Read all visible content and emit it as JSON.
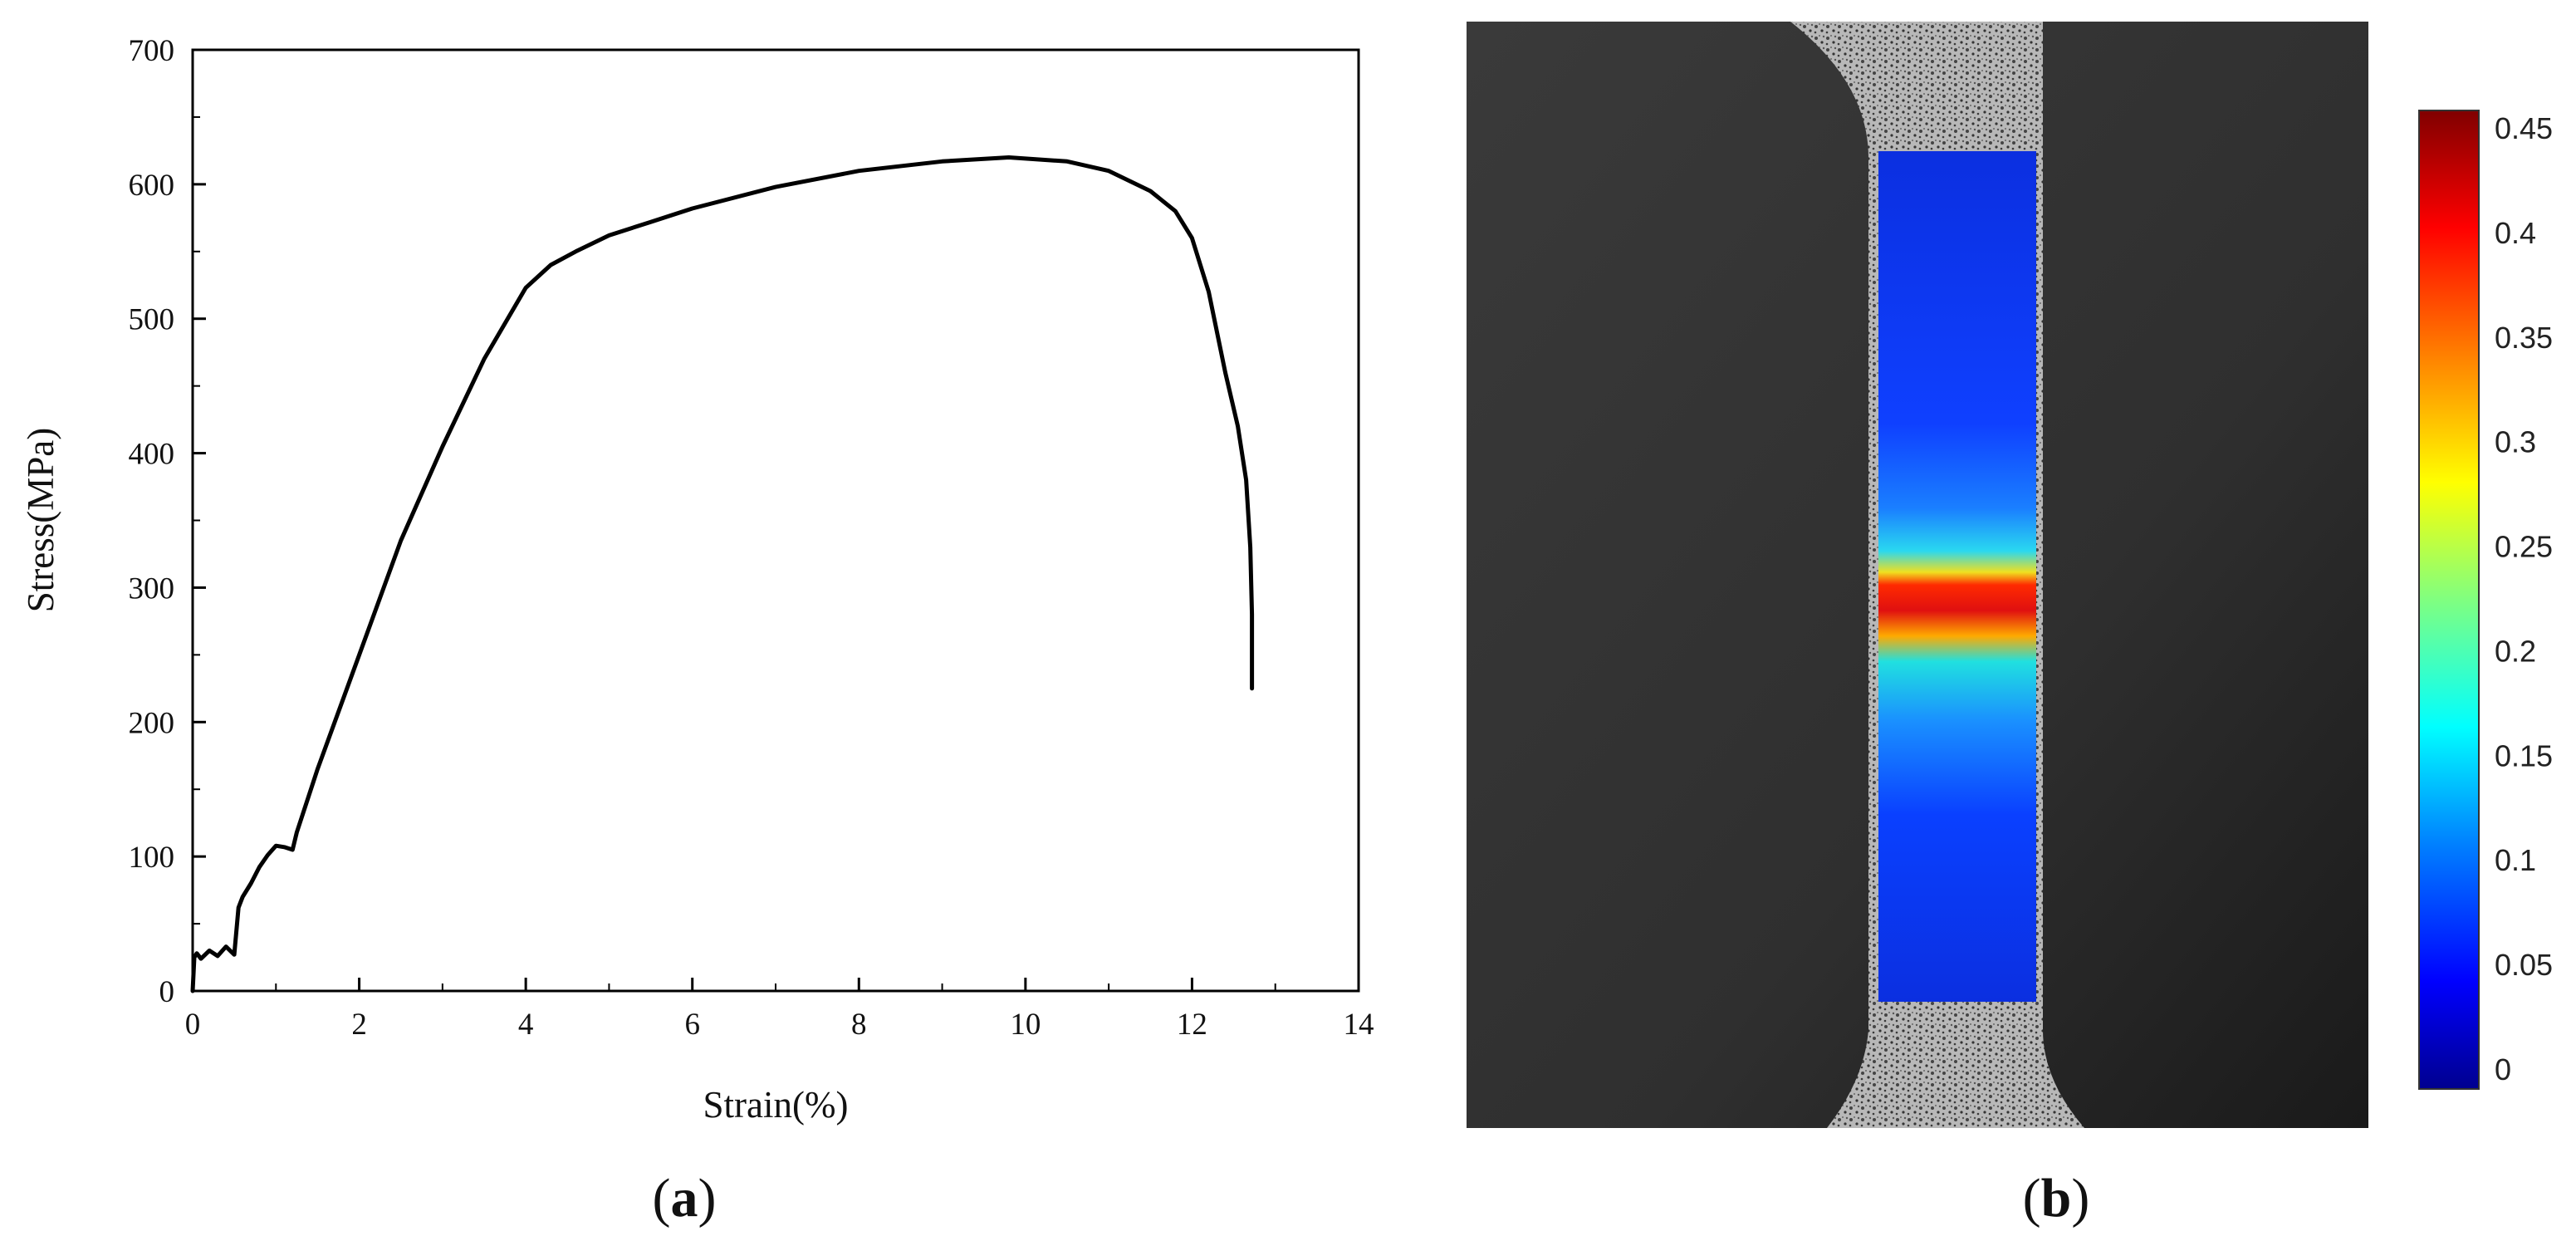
{
  "chart_data": [
    {
      "type": "line",
      "title": "",
      "xlabel": "Strain(%)",
      "ylabel": "Stress(MPa)",
      "xlim": [
        0,
        14
      ],
      "ylim": [
        0,
        700
      ],
      "xticks": [
        0,
        2,
        4,
        6,
        8,
        10,
        12,
        14
      ],
      "yticks": [
        0,
        100,
        200,
        300,
        400,
        500,
        600,
        700
      ],
      "xtick_labels": [
        "0",
        "2",
        "4",
        "6",
        "8",
        "10",
        "12",
        "14"
      ],
      "ytick_labels": [
        "0",
        "100",
        "200",
        "300",
        "400",
        "500",
        "600",
        "700"
      ],
      "grid": false,
      "line_color": "#000000",
      "series": [
        {
          "x": [
            0,
            0.02,
            0.05,
            0.1,
            0.2,
            0.3,
            0.4,
            0.5,
            0.55,
            0.6,
            0.7,
            0.8,
            0.9,
            1.0,
            1.1,
            1.2,
            1.25,
            1.5,
            2.0,
            2.5,
            3.0,
            3.5,
            4.0,
            4.3,
            4.6,
            5.0,
            5.5,
            6.0,
            7.0,
            8.0,
            9.0,
            9.8,
            10.5,
            11.0,
            11.5,
            11.8,
            12.0,
            12.2,
            12.4,
            12.55,
            12.65,
            12.7,
            12.72,
            12.72
          ],
          "y": [
            0,
            25,
            28,
            24,
            30,
            26,
            33,
            27,
            62,
            70,
            80,
            92,
            101,
            108,
            107,
            105,
            118,
            165,
            250,
            335,
            405,
            470,
            523,
            540,
            550,
            562,
            572,
            582,
            598,
            610,
            617,
            620,
            617,
            610,
            595,
            580,
            560,
            520,
            460,
            420,
            380,
            330,
            280,
            225
          ]
        }
      ],
      "panel_label": "a"
    },
    {
      "type": "heatmap",
      "description_visible": "strain field image with colorbar",
      "colorbar_ticks": [
        "0.45",
        "0.4",
        "0.35",
        "0.3",
        "0.25",
        "0.2",
        "0.15",
        "0.1",
        "0.05",
        "0"
      ],
      "colorbar_range": [
        0,
        0.45
      ],
      "colormap": [
        "#00008f",
        "#0000ff",
        "#0080ff",
        "#00ffff",
        "#80ff80",
        "#ffff00",
        "#ff8000",
        "#ff0000",
        "#800000"
      ],
      "panel_label": "b"
    }
  ],
  "labels": {
    "a_open": "(",
    "a_letter": "a",
    "a_close": ")",
    "b_open": "(",
    "b_letter": "b",
    "b_close": ")"
  }
}
